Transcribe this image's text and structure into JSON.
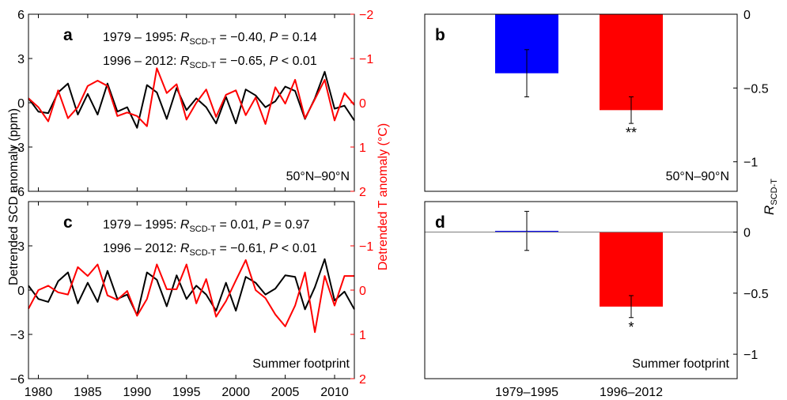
{
  "chart_data": [
    {
      "panel": "a",
      "type": "line",
      "region_label": "50°N–90°N",
      "stats": [
        {
          "period": "1979 – 1995",
          "r_label": "R",
          "r_sub": "SCD-T",
          "r_value": "= −0.40,",
          "p_label": "P",
          "p_value": "= 0.14"
        },
        {
          "period": "1996 – 2012",
          "r_label": "R",
          "r_sub": "SCD-T",
          "r_value": "= −0.65,",
          "p_label": "P",
          "p_value": "< 0.01"
        }
      ],
      "ylim_left": [
        -6,
        6
      ],
      "yticks_left": [
        "6",
        "3",
        "0",
        "−3",
        "−6"
      ],
      "yticks_left_values": [
        6,
        3,
        0,
        -3,
        -6
      ],
      "ylim_right": [
        2,
        -2
      ],
      "yticks_right": [
        "−2",
        "−1",
        "0",
        "1",
        "2"
      ],
      "yticks_right_values": [
        -2,
        -1,
        0,
        1,
        2
      ],
      "x": [
        1979,
        1980,
        1981,
        1982,
        1983,
        1984,
        1985,
        1986,
        1987,
        1988,
        1989,
        1990,
        1991,
        1992,
        1993,
        1994,
        1995,
        1996,
        1997,
        1998,
        1999,
        2000,
        2001,
        2002,
        2003,
        2004,
        2005,
        2006,
        2007,
        2008,
        2009,
        2010,
        2011,
        2012
      ],
      "series": [
        {
          "color": "#000000",
          "axis": "left",
          "values": [
            0.3,
            -0.6,
            -0.7,
            0.7,
            1.3,
            -0.8,
            0.6,
            -0.8,
            1.3,
            -0.6,
            -0.3,
            -1.7,
            1.2,
            0.7,
            -1.1,
            1.0,
            -0.5,
            0.3,
            -0.3,
            -1.4,
            0.4,
            -1.4,
            0.9,
            0.5,
            -0.3,
            0.1,
            1.1,
            0.8,
            -1.1,
            0.3,
            2.1,
            -0.4,
            -0.2,
            -1.2
          ]
        },
        {
          "color": "#ff0000",
          "axis": "right",
          "values": [
            -0.1,
            0.1,
            0.42,
            -0.28,
            0.35,
            0.1,
            -0.38,
            -0.5,
            -0.38,
            0.3,
            0.22,
            0.3,
            0.53,
            -0.78,
            -0.22,
            -0.42,
            0.38,
            0.0,
            -0.3,
            0.32,
            -0.18,
            -0.28,
            0.28,
            -0.12,
            0.48,
            -0.35,
            0.02,
            -0.52,
            0.35,
            -0.08,
            -0.52,
            0.4,
            -0.22,
            0.05
          ]
        }
      ]
    },
    {
      "panel": "c",
      "type": "line",
      "region_label": "Summer footprint",
      "stats": [
        {
          "period": "1979 – 1995",
          "r_label": "R",
          "r_sub": "SCD-T",
          "r_value": "= 0.01,",
          "p_label": "P",
          "p_value": "= 0.97"
        },
        {
          "period": "1996 – 2012",
          "r_label": "R",
          "r_sub": "SCD-T",
          "r_value": "= −0.61,",
          "p_label": "P",
          "p_value": "< 0.01"
        }
      ],
      "ylim_left": [
        -6,
        6
      ],
      "yticks_left": [
        "3",
        "0",
        "−3",
        "−6"
      ],
      "yticks_left_values": [
        3,
        0,
        -3,
        -6
      ],
      "ylim_right": [
        2,
        -2
      ],
      "yticks_right": [
        "−1",
        "0",
        "1",
        "2"
      ],
      "yticks_right_values": [
        -1,
        0,
        1,
        2
      ],
      "x": [
        1979,
        1980,
        1981,
        1982,
        1983,
        1984,
        1985,
        1986,
        1987,
        1988,
        1989,
        1990,
        1991,
        1992,
        1993,
        1994,
        1995,
        1996,
        1997,
        1998,
        1999,
        2000,
        2001,
        2002,
        2003,
        2004,
        2005,
        2006,
        2007,
        2008,
        2009,
        2010,
        2011,
        2012
      ],
      "series": [
        {
          "color": "#000000",
          "axis": "left",
          "values": [
            0.3,
            -0.6,
            -0.8,
            0.6,
            1.2,
            -0.9,
            0.5,
            -0.8,
            1.3,
            -0.6,
            -0.3,
            -1.7,
            1.2,
            0.7,
            -1.1,
            1.0,
            -0.6,
            0.3,
            -0.3,
            -1.4,
            0.5,
            -1.4,
            0.9,
            0.5,
            -0.3,
            0.1,
            1.0,
            0.9,
            -1.3,
            0.2,
            2.1,
            -0.7,
            -0.1,
            -1.3
          ]
        },
        {
          "color": "#ff0000",
          "axis": "right",
          "values": [
            0.42,
            0.0,
            -0.1,
            0.05,
            0.1,
            -0.52,
            -0.32,
            -0.58,
            0.12,
            0.22,
            0.02,
            0.58,
            0.2,
            -0.58,
            -0.02,
            -0.02,
            -0.58,
            0.3,
            -0.25,
            0.6,
            0.25,
            -0.22,
            -0.68,
            0.0,
            0.18,
            0.55,
            0.82,
            0.35,
            -0.4,
            0.95,
            -0.32,
            0.35,
            -0.32,
            -0.32
          ]
        }
      ]
    },
    {
      "panel": "b",
      "type": "bar",
      "region_label": "50°N–90°N",
      "categories": [
        "1979–1995",
        "1996–2012"
      ],
      "values": [
        -0.4,
        -0.65
      ],
      "errors": [
        0.16,
        0.09
      ],
      "colors": [
        "#0000ff",
        "#ff0000"
      ],
      "significance": [
        "",
        "**"
      ],
      "ylim": [
        -1.2,
        0
      ],
      "yticks": [
        "0",
        "−0.5",
        "−1"
      ],
      "yticks_values": [
        0,
        -0.5,
        -1
      ]
    },
    {
      "panel": "d",
      "type": "bar",
      "region_label": "Summer footprint",
      "categories": [
        "1979–1995",
        "1996–2012"
      ],
      "values": [
        0.01,
        -0.61
      ],
      "errors": [
        0.16,
        0.09
      ],
      "colors": [
        "#0000ff",
        "#ff0000"
      ],
      "significance": [
        "",
        "*"
      ],
      "ylim": [
        -1.2,
        0.25
      ],
      "yticks": [
        "0",
        "−0.5",
        "−1"
      ],
      "yticks_values": [
        0,
        -0.5,
        -1
      ]
    }
  ],
  "axes": {
    "left_ylabel": "Detrended SCD anomaly (ppm)",
    "right_ylabel": "Detrended T anomaly (°C)",
    "bar_ylabel": "R",
    "bar_ylabel_sub": "SCD-T",
    "x_ticks": [
      "1980",
      "1985",
      "1990",
      "1995",
      "2000",
      "2005",
      "2010"
    ],
    "x_tick_values": [
      1980,
      1985,
      1990,
      1995,
      2000,
      2005,
      2010
    ],
    "xlim": [
      1979,
      2012
    ]
  }
}
